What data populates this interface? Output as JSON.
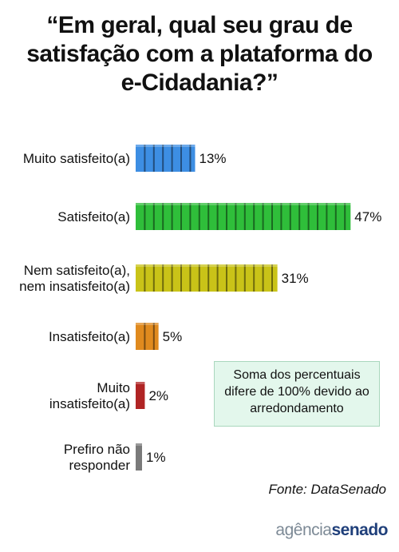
{
  "title_lines": [
    "“Em geral, qual seu grau de",
    "satisfação com a plataforma do",
    "e-Cidadania?”"
  ],
  "chart_data": {
    "type": "bar",
    "orientation": "horizontal",
    "title": "“Em geral, qual seu grau de satisfação com a plataforma do e-Cidadania?”",
    "categories": [
      [
        "Muito satisfeito(a)"
      ],
      [
        "Satisfeito(a)"
      ],
      [
        "Nem satisfeito(a),",
        "nem insatisfeito(a)"
      ],
      [
        "Insatisfeito(a)"
      ],
      [
        "Muito",
        "insatisfeito(a)"
      ],
      [
        "Prefiro não",
        "responder"
      ]
    ],
    "values": [
      13,
      47,
      31,
      5,
      2,
      1
    ],
    "value_labels": [
      "13%",
      "47%",
      "31%",
      "5%",
      "2%",
      "1%"
    ],
    "colors": [
      "#3d8ee3",
      "#2fbe3a",
      "#c9c318",
      "#e08a1e",
      "#b02424",
      "#7a7a7a"
    ],
    "unit": "%",
    "grid": false,
    "legend": "none"
  },
  "note_lines": [
    "Soma dos percentuais",
    "difere de 100% devido ao",
    "arredondamento"
  ],
  "source": "Fonte: DataSenado",
  "logo": {
    "part1": "agência",
    "part2": "senado"
  }
}
